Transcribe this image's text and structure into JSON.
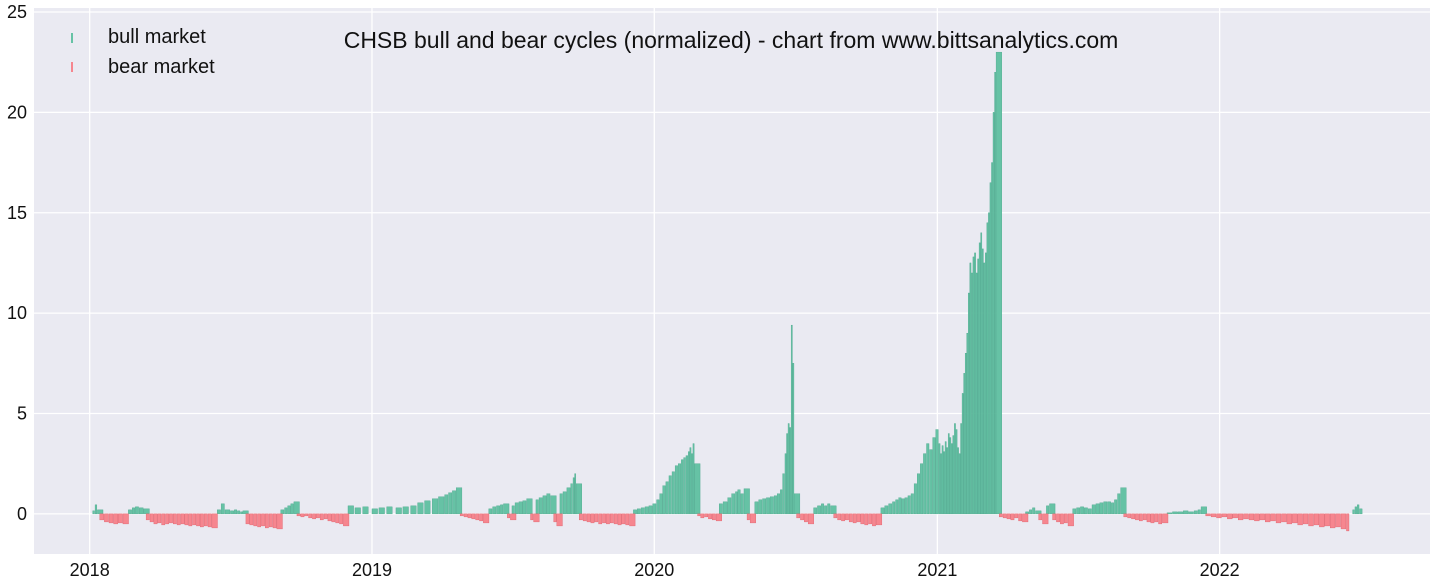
{
  "chart_data": {
    "type": "bar",
    "title": "CHSB bull and bear cycles (normalized)  - chart from www.bittsanalytics.com",
    "xlabel": "",
    "ylabel": "",
    "x_ticks": [
      "2018",
      "2019",
      "2020",
      "2021",
      "2022"
    ],
    "y_ticks": [
      0,
      5,
      10,
      15,
      20,
      25
    ],
    "ylim": [
      -2,
      25.2
    ],
    "xlim": [
      "2017-10-21",
      "2022-09-30"
    ],
    "grid": true,
    "legend": {
      "placement": "top-left",
      "entries": [
        "bull market",
        "bear market"
      ]
    },
    "colors": {
      "bull": "#66c2a5",
      "bear": "#f6868f",
      "background": "#eaeaf2",
      "grid": "#ffffff"
    },
    "series": [
      {
        "name": "bull market",
        "x": [
          "2018-01-05",
          "2018-01-08",
          "2018-01-11",
          "2018-02-20",
          "2018-02-25",
          "2018-03-01",
          "2018-03-06",
          "2018-03-12",
          "2018-06-15",
          "2018-06-20",
          "2018-06-25",
          "2018-07-02",
          "2018-07-07",
          "2018-07-11",
          "2018-07-15",
          "2018-07-18",
          "2018-09-05",
          "2018-09-10",
          "2018-09-14",
          "2018-09-18",
          "2018-09-22",
          "2018-12-01",
          "2018-12-10",
          "2018-12-20",
          "2019-01-01",
          "2019-01-10",
          "2019-01-20",
          "2019-02-01",
          "2019-02-10",
          "2019-02-20",
          "2019-03-01",
          "2019-03-10",
          "2019-03-20",
          "2019-03-28",
          "2019-04-05",
          "2019-04-10",
          "2019-04-15",
          "2019-04-20",
          "2019-06-01",
          "2019-06-06",
          "2019-06-11",
          "2019-06-16",
          "2019-06-20",
          "2019-07-01",
          "2019-07-05",
          "2019-07-10",
          "2019-07-15",
          "2019-07-20",
          "2019-08-01",
          "2019-08-05",
          "2019-08-10",
          "2019-08-15",
          "2019-08-20",
          "2019-09-01",
          "2019-09-05",
          "2019-09-10",
          "2019-09-15",
          "2019-09-18",
          "2019-09-20",
          "2019-09-22",
          "2019-12-05",
          "2019-12-10",
          "2019-12-15",
          "2019-12-20",
          "2019-12-25",
          "2019-12-30",
          "2020-01-04",
          "2020-01-08",
          "2020-01-12",
          "2020-01-16",
          "2020-01-20",
          "2020-01-24",
          "2020-01-28",
          "2020-02-01",
          "2020-02-05",
          "2020-02-08",
          "2020-02-11",
          "2020-02-14",
          "2020-02-16",
          "2020-02-18",
          "2020-02-20",
          "2020-02-22",
          "2020-03-25",
          "2020-03-30",
          "2020-04-05",
          "2020-04-10",
          "2020-04-15",
          "2020-04-18",
          "2020-04-22",
          "2020-04-26",
          "2020-05-10",
          "2020-05-15",
          "2020-05-20",
          "2020-05-25",
          "2020-05-30",
          "2020-06-04",
          "2020-06-08",
          "2020-06-12",
          "2020-06-15",
          "2020-06-18",
          "2020-06-20",
          "2020-06-22",
          "2020-06-24",
          "2020-06-26",
          "2020-06-28",
          "2020-06-30",
          "2020-07-25",
          "2020-07-30",
          "2020-08-04",
          "2020-08-08",
          "2020-08-12",
          "2020-08-16",
          "2020-10-20",
          "2020-10-25",
          "2020-10-30",
          "2020-11-04",
          "2020-11-08",
          "2020-11-12",
          "2020-11-16",
          "2020-11-20",
          "2020-11-24",
          "2020-11-28",
          "2020-12-02",
          "2020-12-06",
          "2020-12-10",
          "2020-12-14",
          "2020-12-18",
          "2020-12-22",
          "2020-12-26",
          "2020-12-30",
          "2021-01-03",
          "2021-01-05",
          "2021-01-07",
          "2021-01-09",
          "2021-01-11",
          "2021-01-13",
          "2021-01-15",
          "2021-01-17",
          "2021-01-19",
          "2021-01-21",
          "2021-01-23",
          "2021-01-25",
          "2021-01-27",
          "2021-01-29",
          "2021-01-31",
          "2021-02-02",
          "2021-02-04",
          "2021-02-06",
          "2021-02-08",
          "2021-02-10",
          "2021-02-12",
          "2021-02-14",
          "2021-02-16",
          "2021-02-18",
          "2021-02-20",
          "2021-02-22",
          "2021-02-24",
          "2021-02-26",
          "2021-02-28",
          "2021-03-02",
          "2021-03-04",
          "2021-03-06",
          "2021-03-08",
          "2021-03-10",
          "2021-03-12",
          "2021-03-14",
          "2021-03-16",
          "2021-03-18",
          "2021-04-25",
          "2021-04-30",
          "2021-05-04",
          "2021-05-08",
          "2021-05-22",
          "2021-05-26",
          "2021-06-25",
          "2021-06-30",
          "2021-07-05",
          "2021-07-10",
          "2021-07-15",
          "2021-07-20",
          "2021-07-25",
          "2021-07-30",
          "2021-08-04",
          "2021-08-09",
          "2021-08-14",
          "2021-08-18",
          "2021-08-22",
          "2021-08-26",
          "2021-10-25",
          "2021-11-01",
          "2021-11-08",
          "2021-11-15",
          "2021-11-22",
          "2021-11-29",
          "2021-12-04",
          "2021-12-08",
          "2022-06-22",
          "2022-06-25",
          "2022-06-28",
          "2022-07-01"
        ],
        "values": [
          0.15,
          0.45,
          0.2,
          0.2,
          0.3,
          0.35,
          0.3,
          0.25,
          0.2,
          0.5,
          0.2,
          0.15,
          0.2,
          0.15,
          0.1,
          0.15,
          0.2,
          0.3,
          0.4,
          0.5,
          0.6,
          0.4,
          0.3,
          0.35,
          0.25,
          0.3,
          0.35,
          0.3,
          0.35,
          0.4,
          0.55,
          0.65,
          0.75,
          0.85,
          0.95,
          1.05,
          1.15,
          1.3,
          0.25,
          0.35,
          0.4,
          0.45,
          0.5,
          0.4,
          0.55,
          0.6,
          0.65,
          0.75,
          0.7,
          0.8,
          0.9,
          1.0,
          0.9,
          1.0,
          1.1,
          1.3,
          1.5,
          1.8,
          2.0,
          1.5,
          0.2,
          0.25,
          0.3,
          0.35,
          0.4,
          0.5,
          0.7,
          1.0,
          1.4,
          1.6,
          1.9,
          2.1,
          2.4,
          2.5,
          2.7,
          2.8,
          2.9,
          3.1,
          3.3,
          3.0,
          3.5,
          2.5,
          0.5,
          0.6,
          0.8,
          1.0,
          1.1,
          1.2,
          1.0,
          1.25,
          0.6,
          0.7,
          0.75,
          0.8,
          0.85,
          0.9,
          1.0,
          1.2,
          2.0,
          3.0,
          4.0,
          4.5,
          4.3,
          9.4,
          7.5,
          1.0,
          0.3,
          0.4,
          0.5,
          0.4,
          0.5,
          0.4,
          0.3,
          0.4,
          0.5,
          0.6,
          0.7,
          0.8,
          0.75,
          0.8,
          0.9,
          1.0,
          1.5,
          2.0,
          2.5,
          3.0,
          3.5,
          3.2,
          3.8,
          4.2,
          3.5,
          3.0,
          3.4,
          3.1,
          3.6,
          3.3,
          4.0,
          3.8,
          3.5,
          3.9,
          4.5,
          4.2,
          3.3,
          3.0,
          4.5,
          6.0,
          7.0,
          8.0,
          9.0,
          11.0,
          12.5,
          12.0,
          12.8,
          13.0,
          12.0,
          12.7,
          13.5,
          14.0,
          13.2,
          12.5,
          13.0,
          14.5,
          15.0,
          16.5,
          17.5,
          20.0,
          22.0,
          23.0,
          0.1,
          0.2,
          0.3,
          0.15,
          0.4,
          0.5,
          0.25,
          0.3,
          0.35,
          0.3,
          0.25,
          0.45,
          0.5,
          0.55,
          0.6,
          0.6,
          0.55,
          0.7,
          1.0,
          1.3,
          0.05,
          0.1,
          0.1,
          0.15,
          0.1,
          0.15,
          0.2,
          0.35,
          0.2,
          0.35,
          0.45,
          0.25
        ]
      },
      {
        "name": "bear market",
        "x": [
          "2018-01-14",
          "2018-01-20",
          "2018-01-26",
          "2018-02-01",
          "2018-02-07",
          "2018-02-13",
          "2018-03-15",
          "2018-03-20",
          "2018-03-25",
          "2018-03-30",
          "2018-04-04",
          "2018-04-09",
          "2018-04-14",
          "2018-04-19",
          "2018-04-24",
          "2018-04-29",
          "2018-05-04",
          "2018-05-09",
          "2018-05-14",
          "2018-05-19",
          "2018-05-24",
          "2018-05-29",
          "2018-06-03",
          "2018-06-08",
          "2018-07-22",
          "2018-07-27",
          "2018-08-01",
          "2018-08-06",
          "2018-08-11",
          "2018-08-16",
          "2018-08-21",
          "2018-08-26",
          "2018-08-31",
          "2018-09-26",
          "2018-10-01",
          "2018-10-06",
          "2018-10-11",
          "2018-10-16",
          "2018-10-21",
          "2018-10-26",
          "2018-10-31",
          "2018-11-05",
          "2018-11-10",
          "2018-11-15",
          "2018-11-20",
          "2018-11-25",
          "2019-04-25",
          "2019-04-30",
          "2019-05-05",
          "2019-05-10",
          "2019-05-15",
          "2019-05-20",
          "2019-05-25",
          "2019-06-25",
          "2019-06-29",
          "2019-07-25",
          "2019-07-29",
          "2019-08-24",
          "2019-08-28",
          "2019-09-26",
          "2019-10-01",
          "2019-10-06",
          "2019-10-11",
          "2019-10-16",
          "2019-10-21",
          "2019-10-26",
          "2019-10-31",
          "2019-11-05",
          "2019-11-10",
          "2019-11-15",
          "2019-11-20",
          "2019-11-25",
          "2019-11-30",
          "2020-02-26",
          "2020-03-01",
          "2020-03-06",
          "2020-03-11",
          "2020-03-16",
          "2020-03-21",
          "2020-04-30",
          "2020-05-04",
          "2020-07-03",
          "2020-07-08",
          "2020-07-13",
          "2020-07-18",
          "2020-08-20",
          "2020-08-25",
          "2020-08-30",
          "2020-09-04",
          "2020-09-09",
          "2020-09-14",
          "2020-09-19",
          "2020-09-24",
          "2020-09-29",
          "2020-10-04",
          "2020-10-09",
          "2020-10-14",
          "2021-03-22",
          "2021-03-27",
          "2021-04-01",
          "2021-04-06",
          "2021-04-11",
          "2021-04-16",
          "2021-04-21",
          "2021-05-12",
          "2021-05-17",
          "2021-05-30",
          "2021-06-04",
          "2021-06-09",
          "2021-06-14",
          "2021-06-19",
          "2021-08-30",
          "2021-09-04",
          "2021-09-09",
          "2021-09-14",
          "2021-09-19",
          "2021-09-24",
          "2021-09-29",
          "2021-10-04",
          "2021-10-09",
          "2021-10-14",
          "2021-10-19",
          "2021-12-14",
          "2021-12-21",
          "2021-12-28",
          "2022-01-04",
          "2022-01-11",
          "2022-01-18",
          "2022-01-25",
          "2022-02-01",
          "2022-02-08",
          "2022-02-15",
          "2022-02-22",
          "2022-03-01",
          "2022-03-08",
          "2022-03-15",
          "2022-03-22",
          "2022-03-29",
          "2022-04-05",
          "2022-04-12",
          "2022-04-19",
          "2022-04-26",
          "2022-05-03",
          "2022-05-10",
          "2022-05-17",
          "2022-05-24",
          "2022-05-31",
          "2022-06-07",
          "2022-06-14"
        ],
        "values": [
          -0.3,
          -0.4,
          -0.45,
          -0.5,
          -0.45,
          -0.5,
          -0.3,
          -0.4,
          -0.5,
          -0.45,
          -0.55,
          -0.5,
          -0.45,
          -0.5,
          -0.55,
          -0.5,
          -0.55,
          -0.6,
          -0.55,
          -0.6,
          -0.65,
          -0.6,
          -0.65,
          -0.7,
          -0.5,
          -0.55,
          -0.6,
          -0.65,
          -0.6,
          -0.7,
          -0.65,
          -0.7,
          -0.75,
          -0.1,
          -0.15,
          -0.1,
          -0.2,
          -0.25,
          -0.2,
          -0.3,
          -0.25,
          -0.35,
          -0.4,
          -0.45,
          -0.5,
          -0.6,
          -0.1,
          -0.15,
          -0.2,
          -0.25,
          -0.3,
          -0.35,
          -0.45,
          -0.2,
          -0.3,
          -0.3,
          -0.4,
          -0.4,
          -0.6,
          -0.3,
          -0.35,
          -0.4,
          -0.45,
          -0.4,
          -0.5,
          -0.45,
          -0.5,
          -0.45,
          -0.5,
          -0.55,
          -0.5,
          -0.55,
          -0.6,
          -0.1,
          -0.2,
          -0.15,
          -0.25,
          -0.3,
          -0.35,
          -0.3,
          -0.45,
          -0.2,
          -0.3,
          -0.4,
          -0.5,
          -0.2,
          -0.3,
          -0.35,
          -0.3,
          -0.4,
          -0.45,
          -0.4,
          -0.5,
          -0.55,
          -0.5,
          -0.6,
          -0.55,
          -0.15,
          -0.2,
          -0.25,
          -0.3,
          -0.2,
          -0.35,
          -0.4,
          -0.3,
          -0.5,
          -0.3,
          -0.4,
          -0.5,
          -0.45,
          -0.6,
          -0.15,
          -0.2,
          -0.25,
          -0.3,
          -0.35,
          -0.3,
          -0.4,
          -0.45,
          -0.4,
          -0.5,
          -0.45,
          -0.1,
          -0.15,
          -0.2,
          -0.15,
          -0.25,
          -0.2,
          -0.3,
          -0.25,
          -0.3,
          -0.35,
          -0.3,
          -0.4,
          -0.35,
          -0.45,
          -0.4,
          -0.5,
          -0.45,
          -0.55,
          -0.5,
          -0.6,
          -0.55,
          -0.65,
          -0.6,
          -0.7,
          -0.65,
          -0.75,
          -0.85
        ]
      }
    ]
  }
}
